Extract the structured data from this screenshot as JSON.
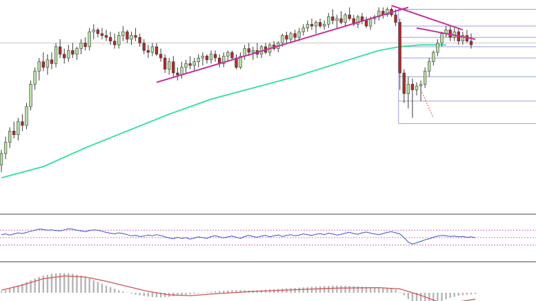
{
  "chart_data": [
    {
      "type": "candlestick",
      "panel": "price",
      "title": "",
      "xlabel": "",
      "ylabel": "",
      "grid": false,
      "ylim": [
        0,
        100
      ],
      "colors": {
        "up_fill": "#b6e0a3",
        "down_fill": "#b22a2a",
        "wick": "#3a3a3a",
        "moving_average": "#3fe2a0",
        "trendline": "#c3319c",
        "fib_levels": "#9aa0d8",
        "projection": "#e05050"
      },
      "candles": [
        {
          "o": 15,
          "h": 23,
          "l": 11,
          "c": 21
        },
        {
          "o": 21,
          "h": 30,
          "l": 18,
          "c": 27
        },
        {
          "o": 27,
          "h": 35,
          "l": 24,
          "c": 33
        },
        {
          "o": 33,
          "h": 38,
          "l": 29,
          "c": 31
        },
        {
          "o": 31,
          "h": 40,
          "l": 28,
          "c": 38
        },
        {
          "o": 38,
          "h": 42,
          "l": 33,
          "c": 36
        },
        {
          "o": 36,
          "h": 48,
          "l": 34,
          "c": 46
        },
        {
          "o": 46,
          "h": 60,
          "l": 44,
          "c": 58
        },
        {
          "o": 58,
          "h": 67,
          "l": 55,
          "c": 65
        },
        {
          "o": 65,
          "h": 72,
          "l": 60,
          "c": 70
        },
        {
          "o": 70,
          "h": 75,
          "l": 65,
          "c": 67
        },
        {
          "o": 67,
          "h": 74,
          "l": 63,
          "c": 71
        },
        {
          "o": 71,
          "h": 75,
          "l": 66,
          "c": 69
        },
        {
          "o": 69,
          "h": 80,
          "l": 67,
          "c": 78
        },
        {
          "o": 78,
          "h": 82,
          "l": 72,
          "c": 74
        },
        {
          "o": 74,
          "h": 77,
          "l": 69,
          "c": 72
        },
        {
          "o": 72,
          "h": 79,
          "l": 70,
          "c": 76
        },
        {
          "o": 76,
          "h": 80,
          "l": 72,
          "c": 74
        },
        {
          "o": 74,
          "h": 78,
          "l": 71,
          "c": 77
        },
        {
          "o": 77,
          "h": 82,
          "l": 74,
          "c": 80
        },
        {
          "o": 80,
          "h": 83,
          "l": 76,
          "c": 78
        },
        {
          "o": 78,
          "h": 88,
          "l": 76,
          "c": 86
        },
        {
          "o": 86,
          "h": 90,
          "l": 82,
          "c": 87
        },
        {
          "o": 87,
          "h": 88,
          "l": 83,
          "c": 85
        },
        {
          "o": 85,
          "h": 88,
          "l": 82,
          "c": 84
        },
        {
          "o": 84,
          "h": 87,
          "l": 81,
          "c": 83
        },
        {
          "o": 83,
          "h": 86,
          "l": 79,
          "c": 81
        },
        {
          "o": 81,
          "h": 85,
          "l": 77,
          "c": 79
        },
        {
          "o": 79,
          "h": 86,
          "l": 77,
          "c": 84
        },
        {
          "o": 84,
          "h": 89,
          "l": 81,
          "c": 86
        },
        {
          "o": 86,
          "h": 87,
          "l": 80,
          "c": 82
        },
        {
          "o": 82,
          "h": 86,
          "l": 79,
          "c": 84
        },
        {
          "o": 84,
          "h": 88,
          "l": 81,
          "c": 83
        },
        {
          "o": 83,
          "h": 85,
          "l": 78,
          "c": 80
        },
        {
          "o": 80,
          "h": 82,
          "l": 74,
          "c": 76
        },
        {
          "o": 76,
          "h": 79,
          "l": 72,
          "c": 75
        },
        {
          "o": 75,
          "h": 80,
          "l": 73,
          "c": 78
        },
        {
          "o": 78,
          "h": 80,
          "l": 73,
          "c": 74
        },
        {
          "o": 74,
          "h": 77,
          "l": 70,
          "c": 72
        },
        {
          "o": 72,
          "h": 74,
          "l": 64,
          "c": 66
        },
        {
          "o": 66,
          "h": 72,
          "l": 63,
          "c": 70
        },
        {
          "o": 70,
          "h": 73,
          "l": 62,
          "c": 64
        },
        {
          "o": 64,
          "h": 67,
          "l": 60,
          "c": 63
        },
        {
          "o": 63,
          "h": 70,
          "l": 61,
          "c": 67
        },
        {
          "o": 67,
          "h": 71,
          "l": 64,
          "c": 69
        },
        {
          "o": 69,
          "h": 73,
          "l": 66,
          "c": 68
        },
        {
          "o": 68,
          "h": 72,
          "l": 65,
          "c": 70
        },
        {
          "o": 70,
          "h": 74,
          "l": 67,
          "c": 72
        },
        {
          "o": 72,
          "h": 75,
          "l": 68,
          "c": 73
        },
        {
          "o": 73,
          "h": 74,
          "l": 69,
          "c": 71
        },
        {
          "o": 71,
          "h": 76,
          "l": 69,
          "c": 74
        },
        {
          "o": 74,
          "h": 76,
          "l": 70,
          "c": 72
        },
        {
          "o": 72,
          "h": 74,
          "l": 67,
          "c": 69
        },
        {
          "o": 69,
          "h": 75,
          "l": 67,
          "c": 73
        },
        {
          "o": 73,
          "h": 76,
          "l": 70,
          "c": 75
        },
        {
          "o": 75,
          "h": 76,
          "l": 71,
          "c": 72
        },
        {
          "o": 72,
          "h": 74,
          "l": 66,
          "c": 67
        },
        {
          "o": 67,
          "h": 75,
          "l": 66,
          "c": 73
        },
        {
          "o": 73,
          "h": 79,
          "l": 71,
          "c": 77
        },
        {
          "o": 77,
          "h": 80,
          "l": 73,
          "c": 75
        },
        {
          "o": 75,
          "h": 78,
          "l": 71,
          "c": 76
        },
        {
          "o": 76,
          "h": 80,
          "l": 72,
          "c": 74
        },
        {
          "o": 74,
          "h": 79,
          "l": 72,
          "c": 78
        },
        {
          "o": 78,
          "h": 80,
          "l": 74,
          "c": 75
        },
        {
          "o": 75,
          "h": 80,
          "l": 73,
          "c": 79
        },
        {
          "o": 79,
          "h": 81,
          "l": 76,
          "c": 77
        },
        {
          "o": 77,
          "h": 81,
          "l": 75,
          "c": 80
        },
        {
          "o": 80,
          "h": 85,
          "l": 78,
          "c": 84
        },
        {
          "o": 84,
          "h": 86,
          "l": 80,
          "c": 82
        },
        {
          "o": 82,
          "h": 86,
          "l": 80,
          "c": 85
        },
        {
          "o": 85,
          "h": 87,
          "l": 81,
          "c": 83
        },
        {
          "o": 83,
          "h": 88,
          "l": 81,
          "c": 86
        },
        {
          "o": 86,
          "h": 90,
          "l": 84,
          "c": 88
        },
        {
          "o": 88,
          "h": 92,
          "l": 86,
          "c": 90
        },
        {
          "o": 90,
          "h": 93,
          "l": 87,
          "c": 89
        },
        {
          "o": 89,
          "h": 92,
          "l": 85,
          "c": 91
        },
        {
          "o": 91,
          "h": 93,
          "l": 88,
          "c": 89
        },
        {
          "o": 89,
          "h": 92,
          "l": 87,
          "c": 90
        },
        {
          "o": 90,
          "h": 96,
          "l": 88,
          "c": 94
        },
        {
          "o": 94,
          "h": 98,
          "l": 90,
          "c": 92
        },
        {
          "o": 92,
          "h": 95,
          "l": 88,
          "c": 93
        },
        {
          "o": 93,
          "h": 97,
          "l": 90,
          "c": 91
        },
        {
          "o": 91,
          "h": 96,
          "l": 89,
          "c": 95
        },
        {
          "o": 95,
          "h": 99,
          "l": 92,
          "c": 93
        },
        {
          "o": 93,
          "h": 95,
          "l": 89,
          "c": 90
        },
        {
          "o": 90,
          "h": 95,
          "l": 88,
          "c": 94
        },
        {
          "o": 94,
          "h": 96,
          "l": 90,
          "c": 92
        },
        {
          "o": 92,
          "h": 94,
          "l": 88,
          "c": 89
        },
        {
          "o": 89,
          "h": 94,
          "l": 87,
          "c": 93
        },
        {
          "o": 93,
          "h": 95,
          "l": 90,
          "c": 94
        },
        {
          "o": 94,
          "h": 99,
          "l": 92,
          "c": 97
        },
        {
          "o": 97,
          "h": 99,
          "l": 93,
          "c": 95
        },
        {
          "o": 95,
          "h": 99,
          "l": 94,
          "c": 98
        },
        {
          "o": 98,
          "h": 99,
          "l": 94,
          "c": 95
        },
        {
          "o": 95,
          "h": 98,
          "l": 89,
          "c": 91
        },
        {
          "o": 91,
          "h": 93,
          "l": 55,
          "c": 64
        },
        {
          "o": 64,
          "h": 66,
          "l": 48,
          "c": 53
        },
        {
          "o": 53,
          "h": 62,
          "l": 45,
          "c": 58
        },
        {
          "o": 58,
          "h": 61,
          "l": 40,
          "c": 55
        },
        {
          "o": 55,
          "h": 59,
          "l": 52,
          "c": 57
        },
        {
          "o": 57,
          "h": 60,
          "l": 49,
          "c": 58
        },
        {
          "o": 58,
          "h": 67,
          "l": 56,
          "c": 65
        },
        {
          "o": 65,
          "h": 72,
          "l": 62,
          "c": 70
        },
        {
          "o": 70,
          "h": 76,
          "l": 68,
          "c": 75
        },
        {
          "o": 75,
          "h": 82,
          "l": 73,
          "c": 80
        },
        {
          "o": 80,
          "h": 86,
          "l": 78,
          "c": 85
        },
        {
          "o": 85,
          "h": 89,
          "l": 83,
          "c": 87
        },
        {
          "o": 87,
          "h": 89,
          "l": 81,
          "c": 83
        },
        {
          "o": 83,
          "h": 88,
          "l": 81,
          "c": 86
        },
        {
          "o": 86,
          "h": 88,
          "l": 79,
          "c": 81
        },
        {
          "o": 81,
          "h": 86,
          "l": 79,
          "c": 84
        },
        {
          "o": 84,
          "h": 87,
          "l": 80,
          "c": 81
        },
        {
          "o": 81,
          "h": 85,
          "l": 77,
          "c": 79
        }
      ],
      "moving_average": [
        {
          "i": 0,
          "v": 8
        },
        {
          "i": 10,
          "v": 14
        },
        {
          "i": 20,
          "v": 24
        },
        {
          "i": 30,
          "v": 33
        },
        {
          "i": 40,
          "v": 42
        },
        {
          "i": 50,
          "v": 50
        },
        {
          "i": 60,
          "v": 56
        },
        {
          "i": 70,
          "v": 62
        },
        {
          "i": 80,
          "v": 69
        },
        {
          "i": 90,
          "v": 76
        },
        {
          "i": 95,
          "v": 78
        },
        {
          "i": 100,
          "v": 79
        },
        {
          "i": 106,
          "v": 79
        }
      ],
      "trendlines": [
        {
          "from": {
            "i": 37,
            "v": 59
          },
          "to": {
            "i": 97,
            "v": 99
          }
        },
        {
          "from": {
            "i": 93,
            "v": 100
          },
          "to": {
            "i": 110,
            "v": 87
          }
        },
        {
          "from": {
            "i": 99,
            "v": 88
          },
          "to": {
            "i": 113,
            "v": 82
          }
        }
      ],
      "fib_levels": {
        "from_i": 96,
        "to_i": 113,
        "values": [
          98,
          89,
          83,
          78,
          72,
          62,
          49,
          37
        ]
      },
      "projection": {
        "from": {
          "i": 100,
          "v": 55
        },
        "to": {
          "i": 103,
          "v": 40
        }
      },
      "horizontal_reference": 80
    },
    {
      "type": "line",
      "panel": "oscillator",
      "title": "",
      "xlabel": "",
      "ylabel": "",
      "grid": false,
      "ylim": [
        0,
        100
      ],
      "reference_levels": [
        70,
        50,
        30
      ],
      "colors": {
        "line": "#3b4fc4",
        "reference": "#c04ac8"
      },
      "values": [
        58,
        60,
        57,
        60,
        63,
        61,
        64,
        67,
        70,
        73,
        72,
        70,
        71,
        69,
        68,
        71,
        74,
        73,
        70,
        68,
        66,
        69,
        71,
        70,
        67,
        64,
        62,
        60,
        63,
        61,
        58,
        55,
        56,
        53,
        54,
        57,
        55,
        58,
        56,
        52,
        49,
        47,
        51,
        48,
        50,
        46,
        49,
        52,
        50,
        48,
        53,
        55,
        52,
        49,
        52,
        54,
        51,
        48,
        53,
        56,
        53,
        51,
        54,
        56,
        52,
        55,
        57,
        53,
        56,
        58,
        55,
        57,
        60,
        58,
        56,
        59,
        61,
        58,
        62,
        60,
        57,
        59,
        62,
        64,
        61,
        59,
        63,
        65,
        62,
        60,
        58,
        61,
        64,
        66,
        63,
        60,
        50,
        38,
        33,
        36,
        40,
        44,
        47,
        51,
        54,
        56,
        55,
        53,
        54,
        52,
        53,
        51,
        52,
        50
      ]
    },
    {
      "type": "bar",
      "panel": "histogram",
      "title": "",
      "xlabel": "",
      "ylabel": "",
      "grid": false,
      "ylim": [
        -1,
        1
      ],
      "colors": {
        "bars": "#b5b5b5",
        "signal": "#d25050"
      },
      "values": [
        0.05,
        0.1,
        0.16,
        0.22,
        0.28,
        0.35,
        0.42,
        0.49,
        0.56,
        0.62,
        0.67,
        0.71,
        0.74,
        0.76,
        0.77,
        0.77,
        0.76,
        0.74,
        0.71,
        0.67,
        0.62,
        0.56,
        0.49,
        0.42,
        0.35,
        0.28,
        0.22,
        0.16,
        0.1,
        0.05,
        0.01,
        -0.03,
        -0.07,
        -0.1,
        -0.13,
        -0.15,
        -0.17,
        -0.18,
        -0.18,
        -0.17,
        -0.16,
        -0.14,
        -0.12,
        -0.1,
        -0.08,
        -0.06,
        -0.04,
        -0.02,
        0.0,
        0.02,
        0.04,
        0.06,
        0.07,
        0.08,
        0.09,
        0.1,
        0.1,
        0.1,
        0.1,
        0.09,
        0.09,
        0.1,
        0.11,
        0.12,
        0.13,
        0.14,
        0.15,
        0.16,
        0.17,
        0.18,
        0.19,
        0.2,
        0.21,
        0.22,
        0.23,
        0.24,
        0.25,
        0.26,
        0.27,
        0.28,
        0.28,
        0.28,
        0.27,
        0.27,
        0.26,
        0.25,
        0.24,
        0.23,
        0.22,
        0.21,
        0.2,
        0.2,
        0.19,
        0.18,
        0.12,
        0.02,
        -0.1,
        -0.25,
        -0.4,
        -0.5,
        -0.56,
        -0.58,
        -0.55,
        -0.48,
        -0.4,
        -0.32,
        -0.26,
        -0.2,
        -0.16,
        -0.12,
        -0.1,
        -0.08,
        -0.06,
        -0.05
      ],
      "signal": [
        {
          "i": 0,
          "v": 0.1
        },
        {
          "i": 5,
          "v": 0.3
        },
        {
          "i": 10,
          "v": 0.55
        },
        {
          "i": 15,
          "v": 0.66
        },
        {
          "i": 20,
          "v": 0.62
        },
        {
          "i": 25,
          "v": 0.45
        },
        {
          "i": 30,
          "v": 0.25
        },
        {
          "i": 35,
          "v": 0.05
        },
        {
          "i": 40,
          "v": -0.08
        },
        {
          "i": 45,
          "v": -0.12
        },
        {
          "i": 50,
          "v": -0.05
        },
        {
          "i": 60,
          "v": 0.05
        },
        {
          "i": 70,
          "v": 0.12
        },
        {
          "i": 80,
          "v": 0.18
        },
        {
          "i": 90,
          "v": 0.2
        },
        {
          "i": 95,
          "v": 0.15
        },
        {
          "i": 100,
          "v": -0.1
        },
        {
          "i": 104,
          "v": -0.35
        },
        {
          "i": 108,
          "v": -0.38
        },
        {
          "i": 113,
          "v": -0.25
        }
      ]
    }
  ]
}
